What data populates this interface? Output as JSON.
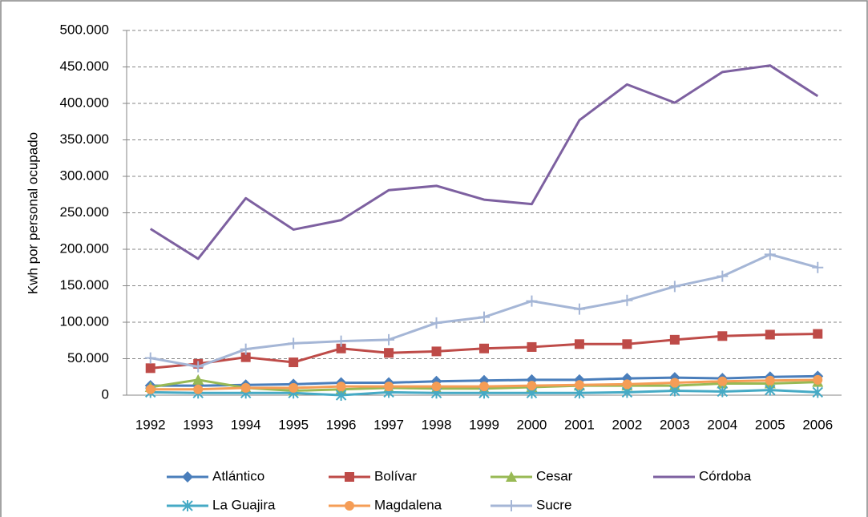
{
  "chart_data": {
    "type": "line",
    "y_label": "Kwh por personal ocupado",
    "categories": [
      "1992",
      "1993",
      "1994",
      "1995",
      "1996",
      "1997",
      "1998",
      "1999",
      "2000",
      "2001",
      "2002",
      "2003",
      "2004",
      "2005",
      "2006"
    ],
    "ylim": [
      0,
      500000
    ],
    "yticks": [
      0,
      {
        "value": 50000,
        "label": "50.000"
      },
      {
        "value": 100000,
        "label": "100.000"
      },
      {
        "value": 150000,
        "label": "150.000"
      },
      {
        "value": 200000,
        "label": "200.000"
      },
      {
        "value": 250000,
        "label": "250.000"
      },
      {
        "value": 300000,
        "label": "300.000"
      },
      {
        "value": 350000,
        "label": "350.000"
      },
      {
        "value": 400000,
        "label": "400.000"
      },
      {
        "value": 450000,
        "label": "450.000"
      },
      {
        "value": 500000,
        "label": "500.000"
      }
    ],
    "grid": true,
    "legend": "bottom",
    "series": [
      {
        "name": "Atlántico",
        "color": "#4a7ebb",
        "marker": "diamond",
        "values": [
          13000,
          13000,
          14000,
          15000,
          17000,
          17000,
          19000,
          20000,
          21000,
          21000,
          23000,
          24000,
          23000,
          25000,
          26000
        ]
      },
      {
        "name": "Bolívar",
        "color": "#be4b48",
        "marker": "square",
        "values": [
          37000,
          43000,
          52000,
          45000,
          64000,
          58000,
          60000,
          64000,
          66000,
          70000,
          70000,
          76000,
          81000,
          83000,
          84000
        ]
      },
      {
        "name": "Cesar",
        "color": "#98b954",
        "marker": "triangle",
        "values": [
          11000,
          21000,
          10000,
          6000,
          8000,
          10000,
          9000,
          9000,
          11000,
          13000,
          13000,
          13000,
          16000,
          16000,
          18000
        ]
      },
      {
        "name": "Córdoba",
        "color": "#7d60a0",
        "marker": "none",
        "values": [
          228000,
          187000,
          270000,
          227000,
          240000,
          281000,
          287000,
          268000,
          262000,
          377000,
          426000,
          401000,
          443000,
          452000,
          410000
        ]
      },
      {
        "name": "La Guajira",
        "color": "#46aac5",
        "marker": "star",
        "values": [
          4000,
          3000,
          3000,
          3000,
          0,
          4000,
          3000,
          3000,
          3000,
          3000,
          4000,
          6000,
          5000,
          7000,
          4000
        ]
      },
      {
        "name": "Magdalena",
        "color": "#f59d56",
        "marker": "circle",
        "values": [
          8000,
          8000,
          10000,
          10000,
          12000,
          12000,
          12000,
          12000,
          13000,
          14000,
          15000,
          17000,
          19000,
          20000,
          21000
        ]
      },
      {
        "name": "Sucre",
        "color": "#a5b6d6",
        "marker": "plus",
        "values": [
          51000,
          39000,
          63000,
          71000,
          74000,
          76000,
          99000,
          107000,
          129000,
          118000,
          130000,
          149000,
          163000,
          193000,
          175000
        ]
      }
    ]
  }
}
